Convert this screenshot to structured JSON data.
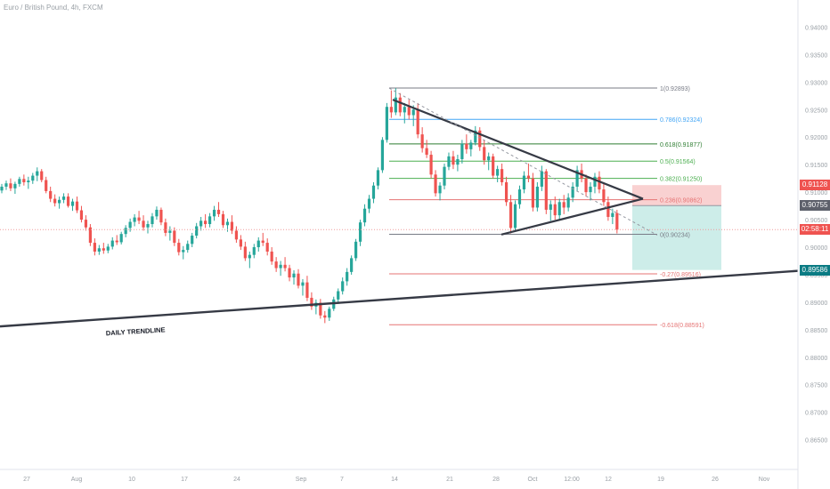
{
  "header": {
    "symbol_title": "Euro / British Pound, 4h, FXCM"
  },
  "colors": {
    "up": "#26a69a",
    "down": "#ef5350",
    "triangle": "#363a45",
    "trendline": "#363a45",
    "fib_red": "#e57373",
    "fib_blue": "#42a5f5",
    "fib_green": "#4caf50",
    "fib_gray": "#787b86",
    "stop_zone": "#f8c9c9",
    "target_zone": "#c8ebe7",
    "current_line": "#ef9a9a"
  },
  "badges": {
    "stop": {
      "value": "0.91128",
      "color": "#ef5350"
    },
    "entry": {
      "value": "0.90755",
      "color": "#5d606b"
    },
    "current": {
      "value": "02:58:11",
      "color": "#ef5350"
    },
    "target": {
      "value": "0.89586",
      "color": "#0a7b83"
    }
  },
  "annotations": {
    "trendline_label": "DAILY TRENDLINE"
  },
  "chart_data": {
    "type": "candlestick",
    "title": "Euro / British Pound, 4h, FXCM",
    "x_tick_labels": [
      "27",
      "Aug",
      "10",
      "17",
      "24",
      "Sep",
      "7",
      "14",
      "21",
      "28",
      "Oct",
      "12:00",
      "12",
      "19",
      "26",
      "Nov"
    ],
    "y_tick_labels": [
      "0.94000",
      "0.93500",
      "0.93000",
      "0.92500",
      "0.92000",
      "0.91500",
      "0.91000",
      "0.90500",
      "0.90000",
      "0.89500",
      "0.89000",
      "0.88500",
      "0.88000",
      "0.87500",
      "0.87000",
      "0.86500"
    ],
    "y_range": [
      0.863,
      0.9425
    ],
    "grid": false,
    "fib_levels": [
      {
        "label": "1(0.92893)",
        "value": 0.92893,
        "color": "#787b86"
      },
      {
        "label": "0.786(0.92324)",
        "value": 0.92324,
        "color": "#42a5f5"
      },
      {
        "label": "0.618(0.91877)",
        "value": 0.91877,
        "color": "#2e7d32"
      },
      {
        "label": "0.5(0.91564)",
        "value": 0.91564,
        "color": "#4caf50"
      },
      {
        "label": "0.382(0.91250)",
        "value": 0.9125,
        "color": "#4caf50"
      },
      {
        "label": "0.236(0.90862)",
        "value": 0.90862,
        "color": "#e57373"
      },
      {
        "label": "0(0.90234)",
        "value": 0.90234,
        "color": "#787b86"
      },
      {
        "label": "-0.27(0.89516)",
        "value": 0.89516,
        "color": "#e57373"
      },
      {
        "label": "-0.618(0.88591)",
        "value": 0.88591,
        "color": "#e57373"
      }
    ],
    "position": {
      "stop": 0.91128,
      "entry": 0.90755,
      "target": 0.89586
    },
    "series": [
      {
        "type": "candles",
        "values": [
          [
            0.9103,
            0.9115,
            0.9098,
            0.911
          ],
          [
            0.911,
            0.9121,
            0.9104,
            0.9116
          ],
          [
            0.9116,
            0.9125,
            0.9102,
            0.9107
          ],
          [
            0.9107,
            0.9119,
            0.9097,
            0.9115
          ],
          [
            0.9115,
            0.9128,
            0.911,
            0.9124
          ],
          [
            0.9124,
            0.9132,
            0.9112,
            0.9118
          ],
          [
            0.9118,
            0.9128,
            0.9106,
            0.9121
          ],
          [
            0.9121,
            0.9135,
            0.9115,
            0.913
          ],
          [
            0.913,
            0.9145,
            0.912,
            0.9138
          ],
          [
            0.9138,
            0.9142,
            0.9118,
            0.9122
          ],
          [
            0.9122,
            0.9128,
            0.9098,
            0.9102
          ],
          [
            0.9102,
            0.911,
            0.9082,
            0.9088
          ],
          [
            0.9088,
            0.9096,
            0.9074,
            0.908
          ],
          [
            0.908,
            0.9092,
            0.907,
            0.9086
          ],
          [
            0.9086,
            0.9098,
            0.908,
            0.9092
          ],
          [
            0.9092,
            0.9098,
            0.9072,
            0.9075
          ],
          [
            0.9075,
            0.9088,
            0.9066,
            0.9083
          ],
          [
            0.9083,
            0.9092,
            0.9062,
            0.9067
          ],
          [
            0.9067,
            0.9075,
            0.9045,
            0.905
          ],
          [
            0.905,
            0.9058,
            0.903,
            0.9036
          ],
          [
            0.9036,
            0.9042,
            0.9002,
            0.9008
          ],
          [
            0.9008,
            0.9016,
            0.8985,
            0.8992
          ],
          [
            0.8992,
            0.9004,
            0.8986,
            0.8998
          ],
          [
            0.8998,
            0.9008,
            0.8988,
            0.8994
          ],
          [
            0.8994,
            0.9006,
            0.8989,
            0.9001
          ],
          [
            0.9001,
            0.9018,
            0.8996,
            0.9012
          ],
          [
            0.9012,
            0.9022,
            0.9004,
            0.9009
          ],
          [
            0.9009,
            0.9028,
            0.9005,
            0.9024
          ],
          [
            0.9024,
            0.904,
            0.9018,
            0.9035
          ],
          [
            0.9035,
            0.9052,
            0.9028,
            0.9046
          ],
          [
            0.9046,
            0.906,
            0.9038,
            0.9054
          ],
          [
            0.9054,
            0.9066,
            0.9042,
            0.9048
          ],
          [
            0.9048,
            0.9058,
            0.903,
            0.9036
          ],
          [
            0.9036,
            0.9048,
            0.9025,
            0.9042
          ],
          [
            0.9042,
            0.9062,
            0.9036,
            0.9056
          ],
          [
            0.9056,
            0.9074,
            0.905,
            0.9068
          ],
          [
            0.9068,
            0.9072,
            0.904,
            0.9045
          ],
          [
            0.9045,
            0.9052,
            0.902,
            0.9026
          ],
          [
            0.9026,
            0.9038,
            0.9012,
            0.903
          ],
          [
            0.903,
            0.9036,
            0.9002,
            0.9008
          ],
          [
            0.9008,
            0.9015,
            0.8985,
            0.8991
          ],
          [
            0.8991,
            0.9002,
            0.8978,
            0.8995
          ],
          [
            0.8995,
            0.9012,
            0.899,
            0.9006
          ],
          [
            0.9006,
            0.9026,
            0.9,
            0.9021
          ],
          [
            0.9021,
            0.9044,
            0.9016,
            0.9038
          ],
          [
            0.9038,
            0.9055,
            0.903,
            0.9048
          ],
          [
            0.9048,
            0.906,
            0.9035,
            0.9042
          ],
          [
            0.9042,
            0.9062,
            0.9036,
            0.9056
          ],
          [
            0.9056,
            0.9075,
            0.9048,
            0.9068
          ],
          [
            0.9068,
            0.9082,
            0.9055,
            0.906
          ],
          [
            0.906,
            0.9066,
            0.9035,
            0.904
          ],
          [
            0.904,
            0.9052,
            0.9028,
            0.9046
          ],
          [
            0.9046,
            0.9058,
            0.9024,
            0.903
          ],
          [
            0.903,
            0.9038,
            0.9008,
            0.9014
          ],
          [
            0.9014,
            0.9022,
            0.8995,
            0.9001
          ],
          [
            0.9001,
            0.901,
            0.8975,
            0.898
          ],
          [
            0.898,
            0.8992,
            0.8962,
            0.8986
          ],
          [
            0.8986,
            0.9006,
            0.898,
            0.9
          ],
          [
            0.9,
            0.9018,
            0.8992,
            0.9012
          ],
          [
            0.9012,
            0.9026,
            0.9002,
            0.9008
          ],
          [
            0.9008,
            0.9016,
            0.8985,
            0.8992
          ],
          [
            0.8992,
            0.9,
            0.8968,
            0.8974
          ],
          [
            0.8974,
            0.8982,
            0.8955,
            0.8962
          ],
          [
            0.8962,
            0.8975,
            0.8948,
            0.8968
          ],
          [
            0.8968,
            0.8982,
            0.8956,
            0.8962
          ],
          [
            0.8962,
            0.8968,
            0.8938,
            0.8945
          ],
          [
            0.8945,
            0.8958,
            0.8932,
            0.8952
          ],
          [
            0.8952,
            0.896,
            0.8925,
            0.893
          ],
          [
            0.893,
            0.8942,
            0.8912,
            0.8936
          ],
          [
            0.8936,
            0.8948,
            0.8902,
            0.8908
          ],
          [
            0.8908,
            0.8918,
            0.8886,
            0.8892
          ],
          [
            0.8892,
            0.8905,
            0.8878,
            0.8899
          ],
          [
            0.8899,
            0.8906,
            0.887,
            0.8876
          ],
          [
            0.8876,
            0.8884,
            0.8862,
            0.8872
          ],
          [
            0.8872,
            0.8892,
            0.8866,
            0.8888
          ],
          [
            0.8888,
            0.891,
            0.8884,
            0.8905
          ],
          [
            0.8905,
            0.8925,
            0.8898,
            0.892
          ],
          [
            0.892,
            0.8945,
            0.8914,
            0.8938
          ],
          [
            0.8938,
            0.8962,
            0.893,
            0.8955
          ],
          [
            0.8955,
            0.8985,
            0.895,
            0.898
          ],
          [
            0.898,
            0.9015,
            0.8975,
            0.901
          ],
          [
            0.901,
            0.905,
            0.9002,
            0.9045
          ],
          [
            0.9045,
            0.9078,
            0.9038,
            0.907
          ],
          [
            0.907,
            0.9095,
            0.9062,
            0.9088
          ],
          [
            0.9088,
            0.9118,
            0.908,
            0.9112
          ],
          [
            0.9112,
            0.9145,
            0.9105,
            0.914
          ],
          [
            0.914,
            0.92,
            0.9135,
            0.9195
          ],
          [
            0.9195,
            0.9262,
            0.919,
            0.9255
          ],
          [
            0.9255,
            0.9285,
            0.9235,
            0.9245
          ],
          [
            0.9245,
            0.9289,
            0.924,
            0.9272
          ],
          [
            0.9272,
            0.928,
            0.9238,
            0.9245
          ],
          [
            0.9245,
            0.9262,
            0.9225,
            0.9255
          ],
          [
            0.9255,
            0.9268,
            0.9232,
            0.924
          ],
          [
            0.924,
            0.9258,
            0.922,
            0.925
          ],
          [
            0.925,
            0.9262,
            0.9198,
            0.9205
          ],
          [
            0.9205,
            0.9218,
            0.9172,
            0.918
          ],
          [
            0.918,
            0.9195,
            0.9162,
            0.9168
          ],
          [
            0.9168,
            0.9175,
            0.9125,
            0.9132
          ],
          [
            0.9132,
            0.914,
            0.9092,
            0.9098
          ],
          [
            0.9098,
            0.9118,
            0.9085,
            0.9112
          ],
          [
            0.9112,
            0.9152,
            0.9105,
            0.9146
          ],
          [
            0.9146,
            0.9172,
            0.914,
            0.9165
          ],
          [
            0.9165,
            0.9175,
            0.9142,
            0.915
          ],
          [
            0.915,
            0.9168,
            0.9138,
            0.916
          ],
          [
            0.916,
            0.9195,
            0.9152,
            0.9188
          ],
          [
            0.9188,
            0.9205,
            0.917,
            0.9178
          ],
          [
            0.9178,
            0.9195,
            0.9165,
            0.919
          ],
          [
            0.919,
            0.922,
            0.9185,
            0.9212
          ],
          [
            0.9212,
            0.9218,
            0.9175,
            0.9182
          ],
          [
            0.9182,
            0.9195,
            0.915,
            0.9158
          ],
          [
            0.9158,
            0.9172,
            0.914,
            0.9165
          ],
          [
            0.9165,
            0.917,
            0.9125,
            0.913
          ],
          [
            0.913,
            0.9148,
            0.9118,
            0.9142
          ],
          [
            0.9142,
            0.9152,
            0.9112,
            0.9118
          ],
          [
            0.9118,
            0.9128,
            0.9075,
            0.9082
          ],
          [
            0.9082,
            0.9095,
            0.9025,
            0.9035
          ],
          [
            0.9035,
            0.9085,
            0.903,
            0.9078
          ],
          [
            0.9078,
            0.9112,
            0.907,
            0.9105
          ],
          [
            0.9105,
            0.9138,
            0.9098,
            0.913
          ],
          [
            0.913,
            0.9152,
            0.9118,
            0.9125
          ],
          [
            0.9125,
            0.9135,
            0.9065,
            0.9072
          ],
          [
            0.9072,
            0.9118,
            0.9065,
            0.911
          ],
          [
            0.911,
            0.9148,
            0.9102,
            0.9138
          ],
          [
            0.9138,
            0.9142,
            0.906,
            0.9068
          ],
          [
            0.9068,
            0.9085,
            0.9048,
            0.9078
          ],
          [
            0.9078,
            0.9092,
            0.905,
            0.9058
          ],
          [
            0.9058,
            0.9088,
            0.905,
            0.9082
          ],
          [
            0.9082,
            0.9095,
            0.906,
            0.9072
          ],
          [
            0.9072,
            0.9098,
            0.9065,
            0.909
          ],
          [
            0.909,
            0.9118,
            0.9082,
            0.911
          ],
          [
            0.911,
            0.9148,
            0.9102,
            0.914
          ],
          [
            0.914,
            0.9152,
            0.9118,
            0.9125
          ],
          [
            0.9125,
            0.9132,
            0.9092,
            0.91
          ],
          [
            0.91,
            0.9118,
            0.9085,
            0.911
          ],
          [
            0.911,
            0.9135,
            0.9098,
            0.9128
          ],
          [
            0.9128,
            0.9138,
            0.9098,
            0.9105
          ],
          [
            0.9105,
            0.9115,
            0.9075,
            0.9082
          ],
          [
            0.9082,
            0.9092,
            0.9048,
            0.9055
          ],
          [
            0.9055,
            0.907,
            0.9042,
            0.9062
          ],
          [
            0.9062,
            0.9068,
            0.9025,
            0.9032
          ]
        ]
      }
    ]
  }
}
